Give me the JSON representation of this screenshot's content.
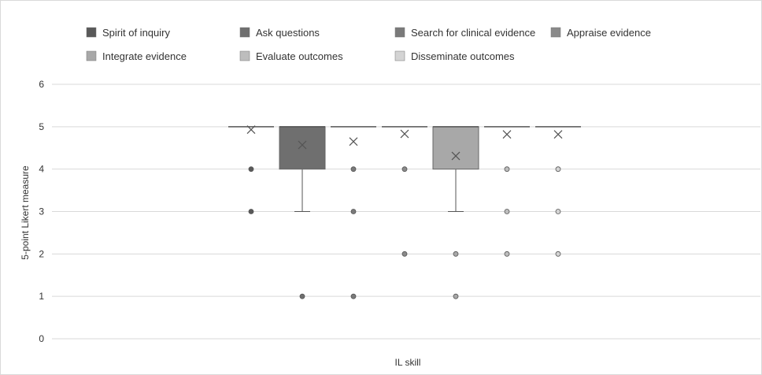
{
  "chart_data": {
    "type": "boxplot",
    "xlabel": "IL skill",
    "ylabel": "5-point Likert measure",
    "ylim": [
      0,
      6
    ],
    "yticks": [
      0,
      1,
      2,
      3,
      4,
      5,
      6
    ],
    "grid": true,
    "legend_position": "top",
    "series": [
      {
        "name": "Spirit of inquiry",
        "color": "#595959",
        "q1": 5,
        "median": 5,
        "q3": 5,
        "whisker_low": 5,
        "whisker_high": 5,
        "mean": 4.93,
        "outliers": [
          4,
          3
        ]
      },
      {
        "name": "Ask questions",
        "color": "#6f6f6f",
        "q1": 4,
        "median": 5,
        "q3": 5,
        "whisker_low": 3,
        "whisker_high": 5,
        "mean": 4.57,
        "outliers": [
          1
        ]
      },
      {
        "name": "Search for clinical evidence",
        "color": "#7a7a7a",
        "q1": 5,
        "median": 5,
        "q3": 5,
        "whisker_low": 5,
        "whisker_high": 5,
        "mean": 4.65,
        "outliers": [
          4,
          3,
          1
        ]
      },
      {
        "name": "Appraise evidence",
        "color": "#8a8a8a",
        "q1": 5,
        "median": 5,
        "q3": 5,
        "whisker_low": 5,
        "whisker_high": 5,
        "mean": 4.83,
        "outliers": [
          4,
          2
        ]
      },
      {
        "name": "Integrate evidence",
        "color": "#a8a8a8",
        "q1": 4,
        "median": 5,
        "q3": 5,
        "whisker_low": 3,
        "whisker_high": 5,
        "mean": 4.31,
        "outliers": [
          2,
          1
        ]
      },
      {
        "name": "Evaluate outcomes",
        "color": "#bdbdbd",
        "q1": 5,
        "median": 5,
        "q3": 5,
        "whisker_low": 5,
        "whisker_high": 5,
        "mean": 4.82,
        "outliers": [
          4,
          3,
          2
        ]
      },
      {
        "name": "Disseminate outcomes",
        "color": "#d4d4d4",
        "q1": 5,
        "median": 5,
        "q3": 5,
        "whisker_low": 5,
        "whisker_high": 5,
        "mean": 4.82,
        "outliers": [
          4,
          3,
          2
        ]
      }
    ]
  }
}
